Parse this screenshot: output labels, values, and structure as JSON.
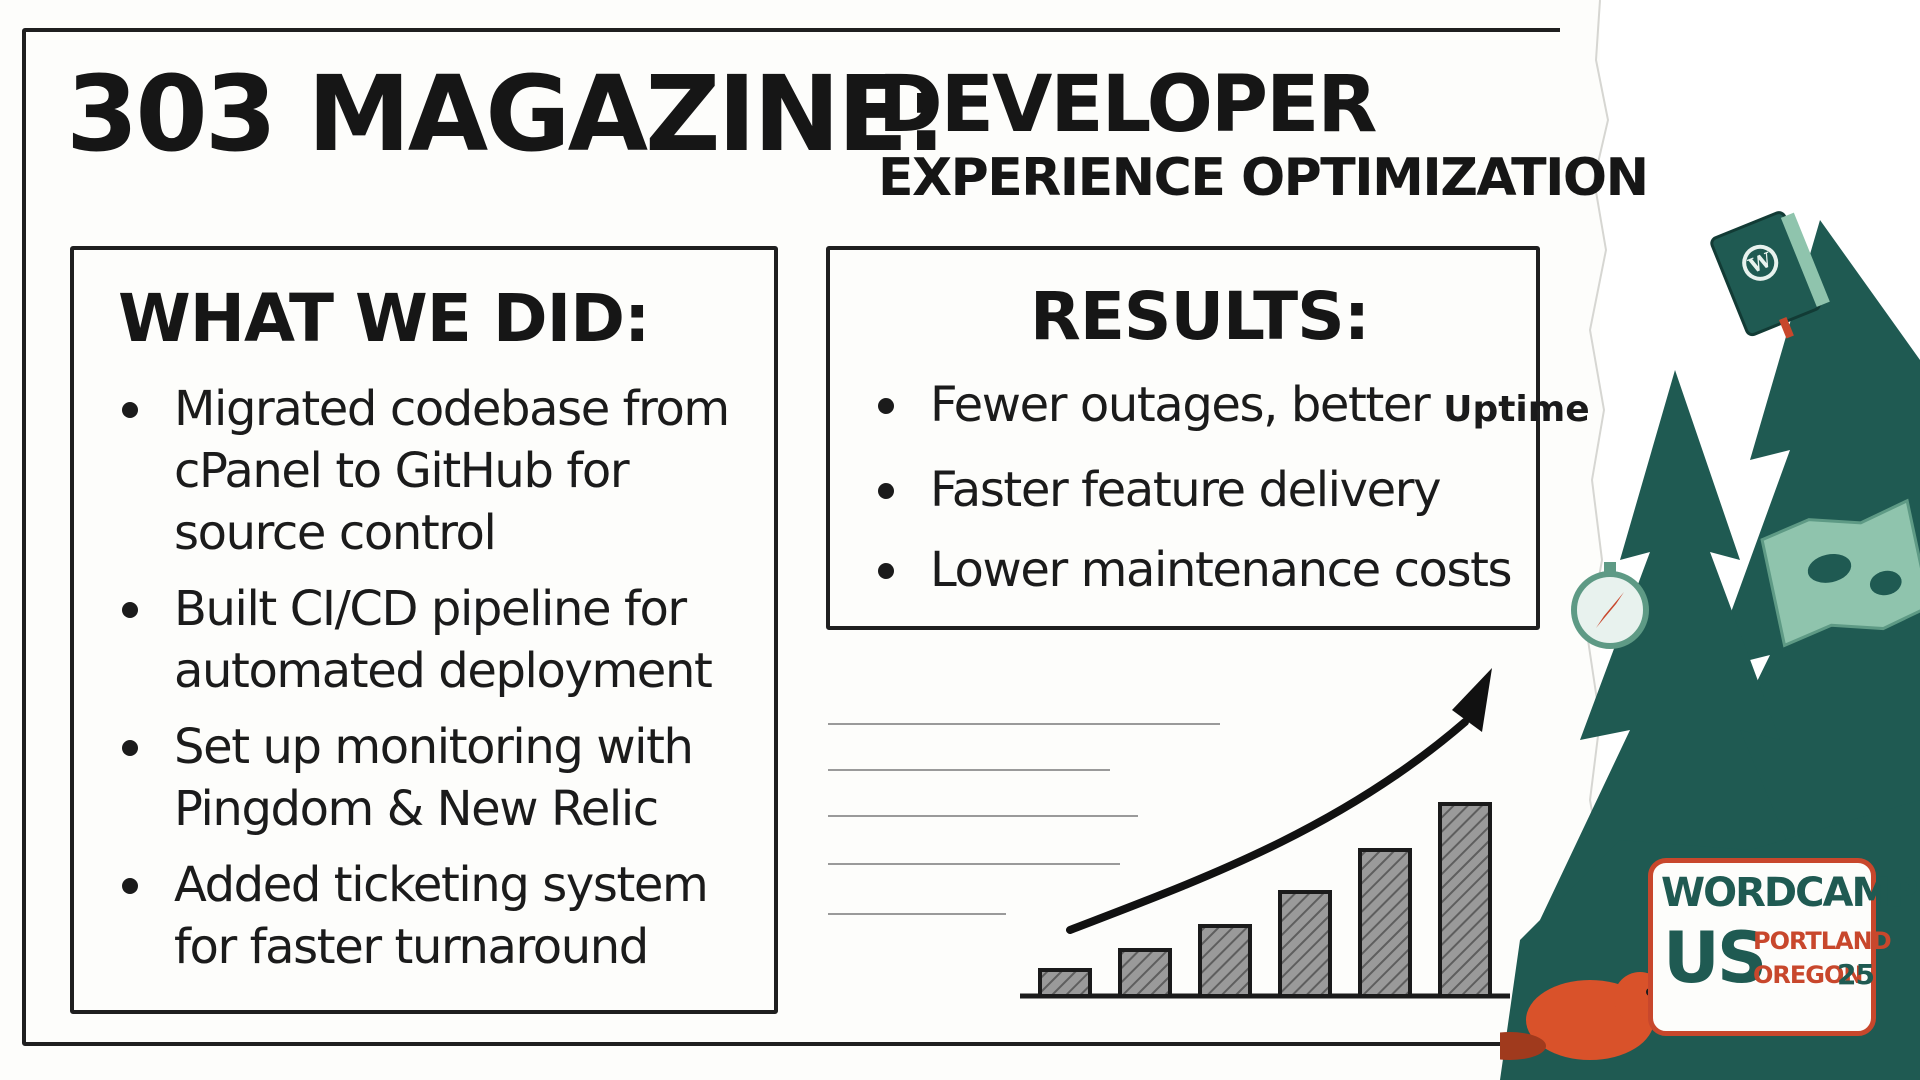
{
  "slide": {
    "title_main": "303 MAGAZINE:",
    "title_sub_line1": "DEVELOPER",
    "title_sub_line2": "EXPERIENCE OPTIMIZATION"
  },
  "what_we_did": {
    "heading": "WHAT WE DID:",
    "items": [
      "Migrated codebase from cPanel to GitHub for source control",
      "Built CI/CD pipeline for automated deployment",
      "Set up monitoring with Pingdom & New Relic",
      "Added ticketing system for faster turnaround"
    ]
  },
  "results": {
    "heading": "RESULTS:",
    "item1_main": "Fewer outages, better",
    "item1_tag": "Uptime",
    "item2": "Faster feature delivery",
    "item3": "Lower maintenance costs"
  },
  "decor": {
    "chart_bar_count": 6,
    "chart_trend": "upward-arrow"
  },
  "wordcamp_badge": {
    "line1": "WORDCAMP",
    "line2": "US",
    "city": "PORTLAND",
    "state": "OREGON",
    "year": "25"
  },
  "colors": {
    "ink": "#1b1b1b",
    "paper": "#fdfdfb",
    "tree_green": "#1f5a52",
    "light_green": "#8fc4ad",
    "badge_red": "#c8472c",
    "beaver_orange": "#d9522a"
  },
  "icons": [
    "wordpress-book-icon",
    "compass-icon",
    "map-icon",
    "beaver-icon",
    "growth-chart-icon"
  ]
}
